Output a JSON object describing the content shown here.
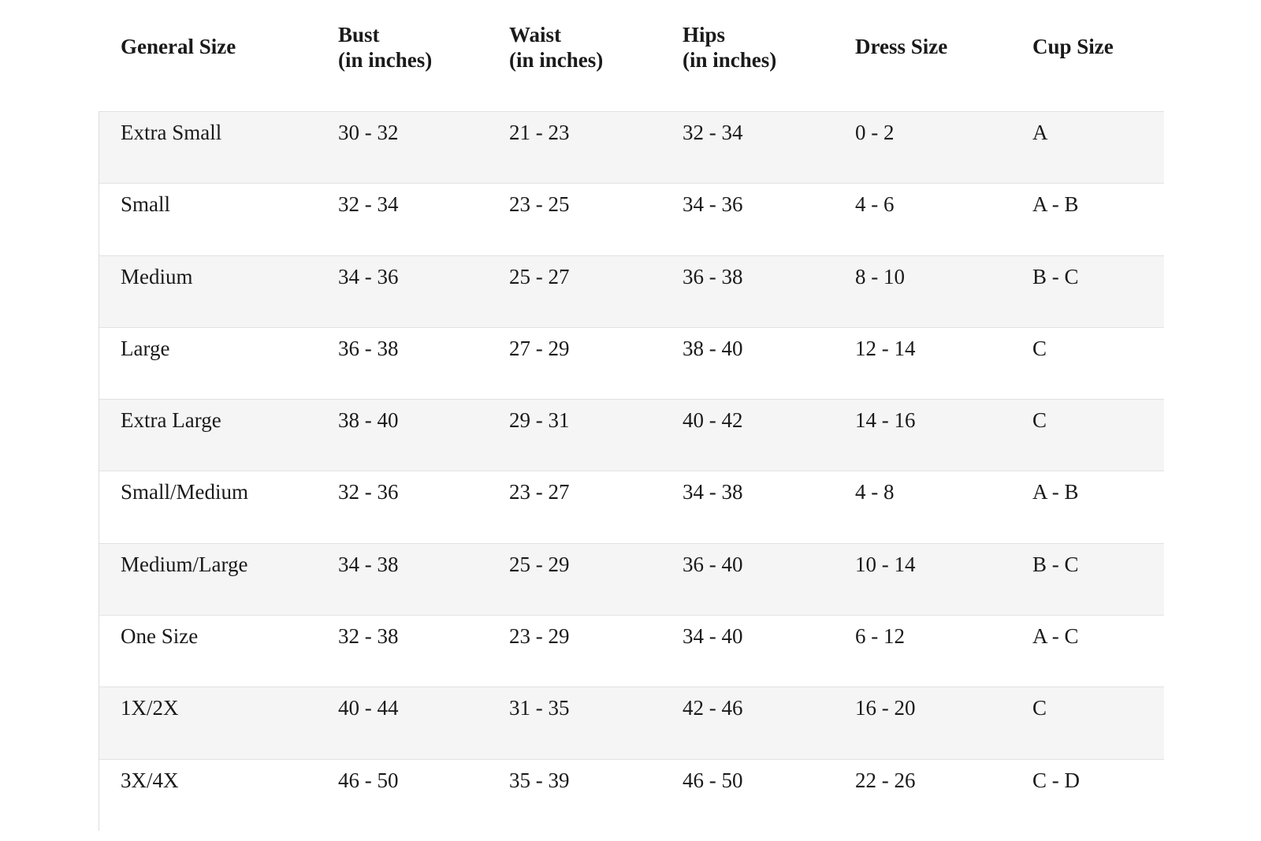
{
  "headers": [
    {
      "line1": "General Size",
      "line2": ""
    },
    {
      "line1": "Bust",
      "line2": "(in inches)"
    },
    {
      "line1": "Waist",
      "line2": "(in inches)"
    },
    {
      "line1": "Hips",
      "line2": "(in inches)"
    },
    {
      "line1": "Dress Size",
      "line2": ""
    },
    {
      "line1": "Cup Size",
      "line2": ""
    }
  ],
  "rows": [
    [
      "Extra Small",
      "30 - 32",
      "21 - 23",
      "32 - 34",
      "0 - 2",
      "A"
    ],
    [
      "Small",
      "32 - 34",
      "23 - 25",
      "34 - 36",
      "4 - 6",
      "A - B"
    ],
    [
      "Medium",
      "34 - 36",
      "25 - 27",
      "36 - 38",
      "8 - 10",
      "B - C"
    ],
    [
      "Large",
      "36 - 38",
      "27 - 29",
      "38 - 40",
      "12 - 14",
      "C"
    ],
    [
      "Extra Large",
      "38 - 40",
      "29 - 31",
      "40 - 42",
      "14 - 16",
      "C"
    ],
    [
      "Small/Medium",
      "32 - 36",
      "23 - 27",
      "34 - 38",
      "4 - 8",
      "A - B"
    ],
    [
      "Medium/Large",
      "34 - 38",
      "25 - 29",
      "36 - 40",
      "10 - 14",
      "B - C"
    ],
    [
      "One Size",
      "32 - 38",
      "23 - 29",
      "34 - 40",
      "6 - 12",
      "A - C"
    ],
    [
      "1X/2X",
      "40 - 44",
      "31 - 35",
      "42 - 46",
      "16 - 20",
      "C"
    ],
    [
      "3X/4X",
      "46 - 50",
      "35 - 39",
      "46 - 50",
      "22 - 26",
      "C - D"
    ]
  ],
  "colors": {
    "stripe": "#f5f5f5",
    "border": "#e2e2e2",
    "text": "#1a1a1a"
  }
}
